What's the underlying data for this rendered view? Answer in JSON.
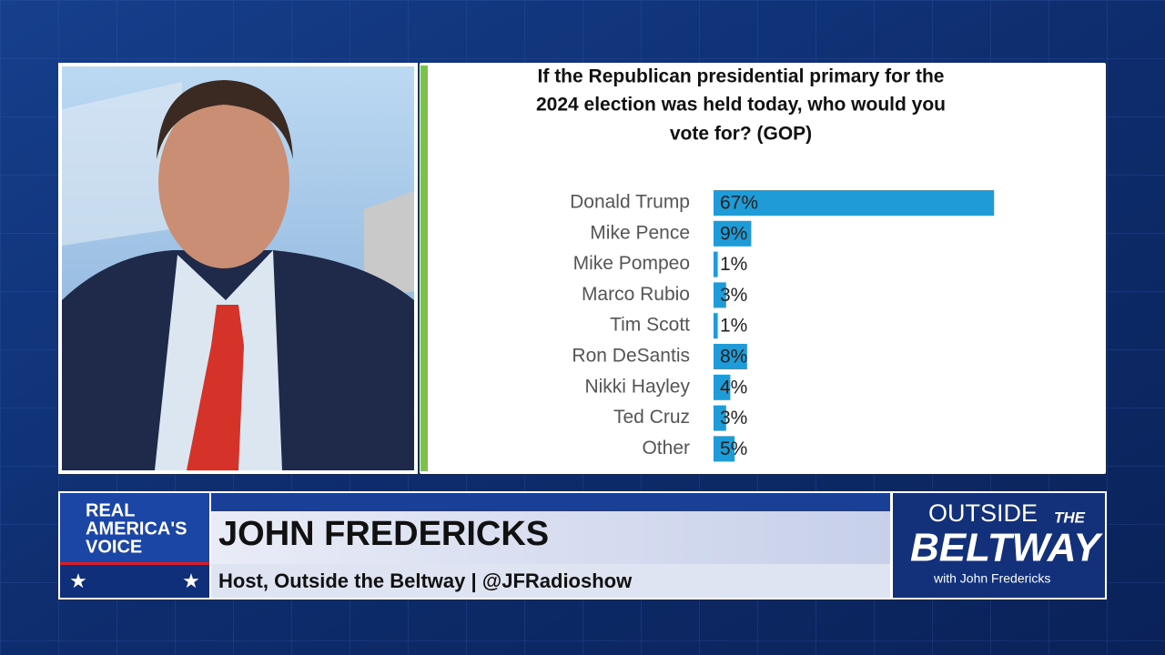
{
  "chart_data": {
    "type": "bar",
    "orientation": "horizontal",
    "title_lines": [
      "If the Republican presidential primary for the",
      "2024 election was held today, who would you",
      "vote for? (GOP)"
    ],
    "categories": [
      "Donald Trump",
      "Mike Pence",
      "Mike Pompeo",
      "Marco Rubio",
      "Tim Scott",
      "Ron DeSantis",
      "Nikki Hayley",
      "Ted Cruz",
      "Other"
    ],
    "values": [
      67,
      9,
      1,
      3,
      1,
      8,
      4,
      3,
      5
    ],
    "value_labels": [
      "67%",
      "9%",
      "1%",
      "3%",
      "1%",
      "8%",
      "4%",
      "3%",
      "5%"
    ],
    "color": "#1f9bd7"
  },
  "network_logo": {
    "line1": "REAL",
    "line2": "AMERICA'S",
    "line3": "VOICE"
  },
  "lower_third": {
    "name": "JOHN FREDERICKS",
    "subtitle": "Host, Outside the Beltway | @JFRadioshow"
  },
  "show_logo": {
    "outside": "OUTSIDE",
    "the": "THE",
    "beltway": "BELTWAY",
    "host": "with John Fredericks"
  }
}
